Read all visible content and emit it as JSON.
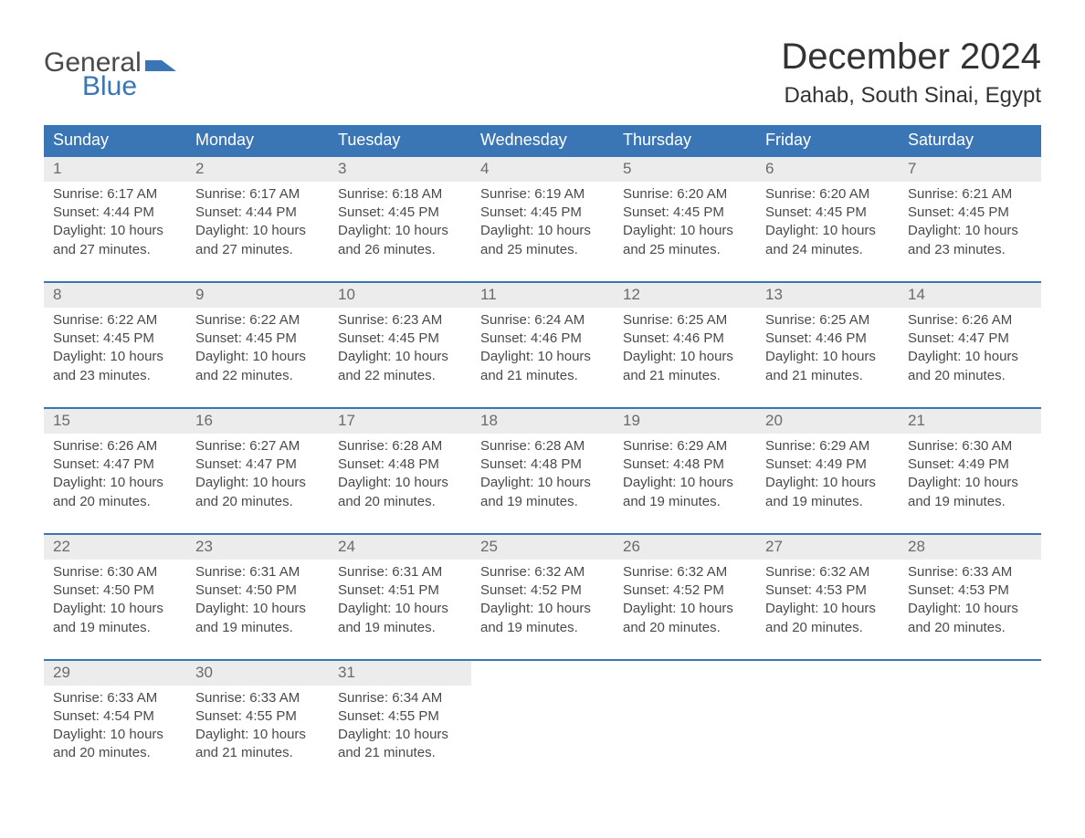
{
  "logo": {
    "top": "General",
    "bottom": "Blue",
    "shape_color": "#3a76b5",
    "text_gray": "#4a4a4a"
  },
  "title": "December 2024",
  "location": "Dahab, South Sinai, Egypt",
  "colors": {
    "header_bg": "#3a76b5",
    "header_text": "#ffffff",
    "row_separator": "#3a76b5",
    "daynum_bg": "#ececec",
    "body_text": "#4a4a4a",
    "daynum_text": "#6b6b6b",
    "page_bg": "#ffffff"
  },
  "weekdays": [
    "Sunday",
    "Monday",
    "Tuesday",
    "Wednesday",
    "Thursday",
    "Friday",
    "Saturday"
  ],
  "weeks": [
    [
      {
        "d": "1",
        "sunrise": "Sunrise: 6:17 AM",
        "sunset": "Sunset: 4:44 PM",
        "dl1": "Daylight: 10 hours",
        "dl2": "and 27 minutes."
      },
      {
        "d": "2",
        "sunrise": "Sunrise: 6:17 AM",
        "sunset": "Sunset: 4:44 PM",
        "dl1": "Daylight: 10 hours",
        "dl2": "and 27 minutes."
      },
      {
        "d": "3",
        "sunrise": "Sunrise: 6:18 AM",
        "sunset": "Sunset: 4:45 PM",
        "dl1": "Daylight: 10 hours",
        "dl2": "and 26 minutes."
      },
      {
        "d": "4",
        "sunrise": "Sunrise: 6:19 AM",
        "sunset": "Sunset: 4:45 PM",
        "dl1": "Daylight: 10 hours",
        "dl2": "and 25 minutes."
      },
      {
        "d": "5",
        "sunrise": "Sunrise: 6:20 AM",
        "sunset": "Sunset: 4:45 PM",
        "dl1": "Daylight: 10 hours",
        "dl2": "and 25 minutes."
      },
      {
        "d": "6",
        "sunrise": "Sunrise: 6:20 AM",
        "sunset": "Sunset: 4:45 PM",
        "dl1": "Daylight: 10 hours",
        "dl2": "and 24 minutes."
      },
      {
        "d": "7",
        "sunrise": "Sunrise: 6:21 AM",
        "sunset": "Sunset: 4:45 PM",
        "dl1": "Daylight: 10 hours",
        "dl2": "and 23 minutes."
      }
    ],
    [
      {
        "d": "8",
        "sunrise": "Sunrise: 6:22 AM",
        "sunset": "Sunset: 4:45 PM",
        "dl1": "Daylight: 10 hours",
        "dl2": "and 23 minutes."
      },
      {
        "d": "9",
        "sunrise": "Sunrise: 6:22 AM",
        "sunset": "Sunset: 4:45 PM",
        "dl1": "Daylight: 10 hours",
        "dl2": "and 22 minutes."
      },
      {
        "d": "10",
        "sunrise": "Sunrise: 6:23 AM",
        "sunset": "Sunset: 4:45 PM",
        "dl1": "Daylight: 10 hours",
        "dl2": "and 22 minutes."
      },
      {
        "d": "11",
        "sunrise": "Sunrise: 6:24 AM",
        "sunset": "Sunset: 4:46 PM",
        "dl1": "Daylight: 10 hours",
        "dl2": "and 21 minutes."
      },
      {
        "d": "12",
        "sunrise": "Sunrise: 6:25 AM",
        "sunset": "Sunset: 4:46 PM",
        "dl1": "Daylight: 10 hours",
        "dl2": "and 21 minutes."
      },
      {
        "d": "13",
        "sunrise": "Sunrise: 6:25 AM",
        "sunset": "Sunset: 4:46 PM",
        "dl1": "Daylight: 10 hours",
        "dl2": "and 21 minutes."
      },
      {
        "d": "14",
        "sunrise": "Sunrise: 6:26 AM",
        "sunset": "Sunset: 4:47 PM",
        "dl1": "Daylight: 10 hours",
        "dl2": "and 20 minutes."
      }
    ],
    [
      {
        "d": "15",
        "sunrise": "Sunrise: 6:26 AM",
        "sunset": "Sunset: 4:47 PM",
        "dl1": "Daylight: 10 hours",
        "dl2": "and 20 minutes."
      },
      {
        "d": "16",
        "sunrise": "Sunrise: 6:27 AM",
        "sunset": "Sunset: 4:47 PM",
        "dl1": "Daylight: 10 hours",
        "dl2": "and 20 minutes."
      },
      {
        "d": "17",
        "sunrise": "Sunrise: 6:28 AM",
        "sunset": "Sunset: 4:48 PM",
        "dl1": "Daylight: 10 hours",
        "dl2": "and 20 minutes."
      },
      {
        "d": "18",
        "sunrise": "Sunrise: 6:28 AM",
        "sunset": "Sunset: 4:48 PM",
        "dl1": "Daylight: 10 hours",
        "dl2": "and 19 minutes."
      },
      {
        "d": "19",
        "sunrise": "Sunrise: 6:29 AM",
        "sunset": "Sunset: 4:48 PM",
        "dl1": "Daylight: 10 hours",
        "dl2": "and 19 minutes."
      },
      {
        "d": "20",
        "sunrise": "Sunrise: 6:29 AM",
        "sunset": "Sunset: 4:49 PM",
        "dl1": "Daylight: 10 hours",
        "dl2": "and 19 minutes."
      },
      {
        "d": "21",
        "sunrise": "Sunrise: 6:30 AM",
        "sunset": "Sunset: 4:49 PM",
        "dl1": "Daylight: 10 hours",
        "dl2": "and 19 minutes."
      }
    ],
    [
      {
        "d": "22",
        "sunrise": "Sunrise: 6:30 AM",
        "sunset": "Sunset: 4:50 PM",
        "dl1": "Daylight: 10 hours",
        "dl2": "and 19 minutes."
      },
      {
        "d": "23",
        "sunrise": "Sunrise: 6:31 AM",
        "sunset": "Sunset: 4:50 PM",
        "dl1": "Daylight: 10 hours",
        "dl2": "and 19 minutes."
      },
      {
        "d": "24",
        "sunrise": "Sunrise: 6:31 AM",
        "sunset": "Sunset: 4:51 PM",
        "dl1": "Daylight: 10 hours",
        "dl2": "and 19 minutes."
      },
      {
        "d": "25",
        "sunrise": "Sunrise: 6:32 AM",
        "sunset": "Sunset: 4:52 PM",
        "dl1": "Daylight: 10 hours",
        "dl2": "and 19 minutes."
      },
      {
        "d": "26",
        "sunrise": "Sunrise: 6:32 AM",
        "sunset": "Sunset: 4:52 PM",
        "dl1": "Daylight: 10 hours",
        "dl2": "and 20 minutes."
      },
      {
        "d": "27",
        "sunrise": "Sunrise: 6:32 AM",
        "sunset": "Sunset: 4:53 PM",
        "dl1": "Daylight: 10 hours",
        "dl2": "and 20 minutes."
      },
      {
        "d": "28",
        "sunrise": "Sunrise: 6:33 AM",
        "sunset": "Sunset: 4:53 PM",
        "dl1": "Daylight: 10 hours",
        "dl2": "and 20 minutes."
      }
    ],
    [
      {
        "d": "29",
        "sunrise": "Sunrise: 6:33 AM",
        "sunset": "Sunset: 4:54 PM",
        "dl1": "Daylight: 10 hours",
        "dl2": "and 20 minutes."
      },
      {
        "d": "30",
        "sunrise": "Sunrise: 6:33 AM",
        "sunset": "Sunset: 4:55 PM",
        "dl1": "Daylight: 10 hours",
        "dl2": "and 21 minutes."
      },
      {
        "d": "31",
        "sunrise": "Sunrise: 6:34 AM",
        "sunset": "Sunset: 4:55 PM",
        "dl1": "Daylight: 10 hours",
        "dl2": "and 21 minutes."
      },
      null,
      null,
      null,
      null
    ]
  ]
}
